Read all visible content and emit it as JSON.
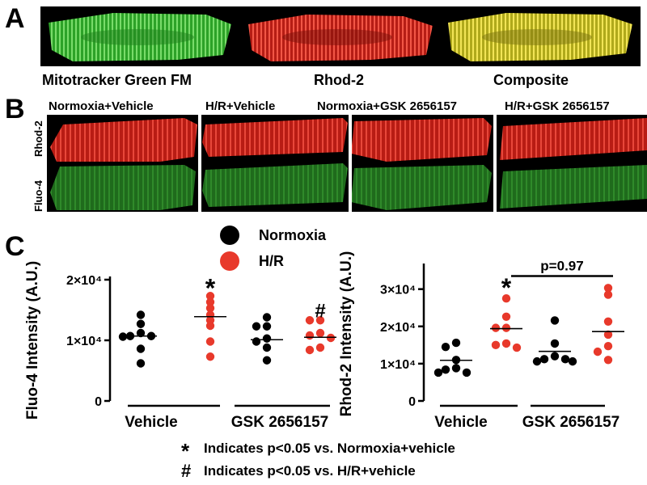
{
  "panels": {
    "a": "A",
    "b": "B",
    "c": "C"
  },
  "panel_a": {
    "captions": [
      "Mitotracker Green FM",
      "Rhod-2",
      "Composite"
    ],
    "colors": {
      "green": "#35c830",
      "red": "#e02a1e",
      "composite": "#e6dc28"
    }
  },
  "panel_b": {
    "columns": [
      "Normoxia+Vehicle",
      "H/R+Vehicle",
      "Normoxia+GSK 2656157",
      "H/R+GSK 2656157"
    ],
    "rows": [
      "Rhod-2",
      "Fluo-4"
    ]
  },
  "legend": {
    "items": [
      {
        "label": "Normoxia",
        "color": "#000000"
      },
      {
        "label": "H/R",
        "color": "#e8392b"
      }
    ]
  },
  "chart_data": [
    {
      "type": "scatter",
      "ylabel": "Fluo-4 Intensity (A.U.)",
      "ylim": [
        0,
        20000
      ],
      "yticks": [
        {
          "value": 0,
          "label": "0"
        },
        {
          "value": 10000,
          "label": "1×10⁴"
        },
        {
          "value": 20000,
          "label": "2×10⁴"
        }
      ],
      "groups": [
        "Vehicle",
        "GSK 2656157"
      ],
      "series": [
        {
          "name": "Normoxia",
          "color": "#000000",
          "group": 0,
          "values": [
            14200,
            12700,
            11200,
            10700,
            10700,
            10600,
            8600,
            6200
          ]
        },
        {
          "name": "H/R",
          "color": "#e8392b",
          "group": 0,
          "values": [
            17300,
            16300,
            15300,
            14200,
            13300,
            12400,
            9800,
            7300
          ]
        },
        {
          "name": "Normoxia",
          "color": "#000000",
          "group": 1,
          "values": [
            13800,
            12300,
            12300,
            10300,
            9800,
            8800,
            6700
          ]
        },
        {
          "name": "H/R",
          "color": "#e8392b",
          "group": 1,
          "values": [
            13300,
            13300,
            11200,
            10800,
            10400,
            8800,
            8400
          ]
        }
      ],
      "means": [
        10700,
        13900,
        10100,
        10500
      ],
      "annotations": [
        {
          "text": "*",
          "group": 0,
          "series": "H/R",
          "y": 19000
        },
        {
          "text": "#",
          "group": 1,
          "series": "H/R",
          "y": 15700
        }
      ]
    },
    {
      "type": "scatter",
      "ylabel": "Rhod-2 Intensity (A.U.)",
      "ylim": [
        0,
        36000
      ],
      "yticks": [
        {
          "value": 0,
          "label": "0"
        },
        {
          "value": 10000,
          "label": "1×10⁴"
        },
        {
          "value": 20000,
          "label": "2×10⁴"
        },
        {
          "value": 30000,
          "label": "3×10⁴"
        }
      ],
      "groups": [
        "Vehicle",
        "GSK 2656157"
      ],
      "series": [
        {
          "name": "Normoxia",
          "color": "#000000",
          "group": 0,
          "values": [
            15600,
            14500,
            11000,
            8800,
            8400,
            7600,
            7600
          ]
        },
        {
          "name": "H/R",
          "color": "#e8392b",
          "group": 0,
          "values": [
            27500,
            22600,
            19600,
            19600,
            15400,
            15000,
            14300
          ]
        },
        {
          "name": "Normoxia",
          "color": "#000000",
          "group": 1,
          "values": [
            21600,
            15400,
            12000,
            11200,
            11200,
            10600,
            10600
          ]
        },
        {
          "name": "H/R",
          "color": "#e8392b",
          "group": 1,
          "values": [
            30300,
            28500,
            21300,
            17800,
            14700,
            13200,
            11000
          ]
        }
      ],
      "means": [
        10900,
        19400,
        13300,
        18600
      ],
      "annotations": [
        {
          "text": "*",
          "group": 0,
          "series": "H/R",
          "y": 31000
        }
      ],
      "bracket": {
        "text": "p=0.97",
        "y": 33500
      }
    }
  ],
  "notes": [
    {
      "symbol": "*",
      "text": "Indicates p<0.05 vs. Normoxia+vehicle"
    },
    {
      "symbol": "#",
      "text": "Indicates p<0.05 vs. H/R+vehicle"
    }
  ]
}
